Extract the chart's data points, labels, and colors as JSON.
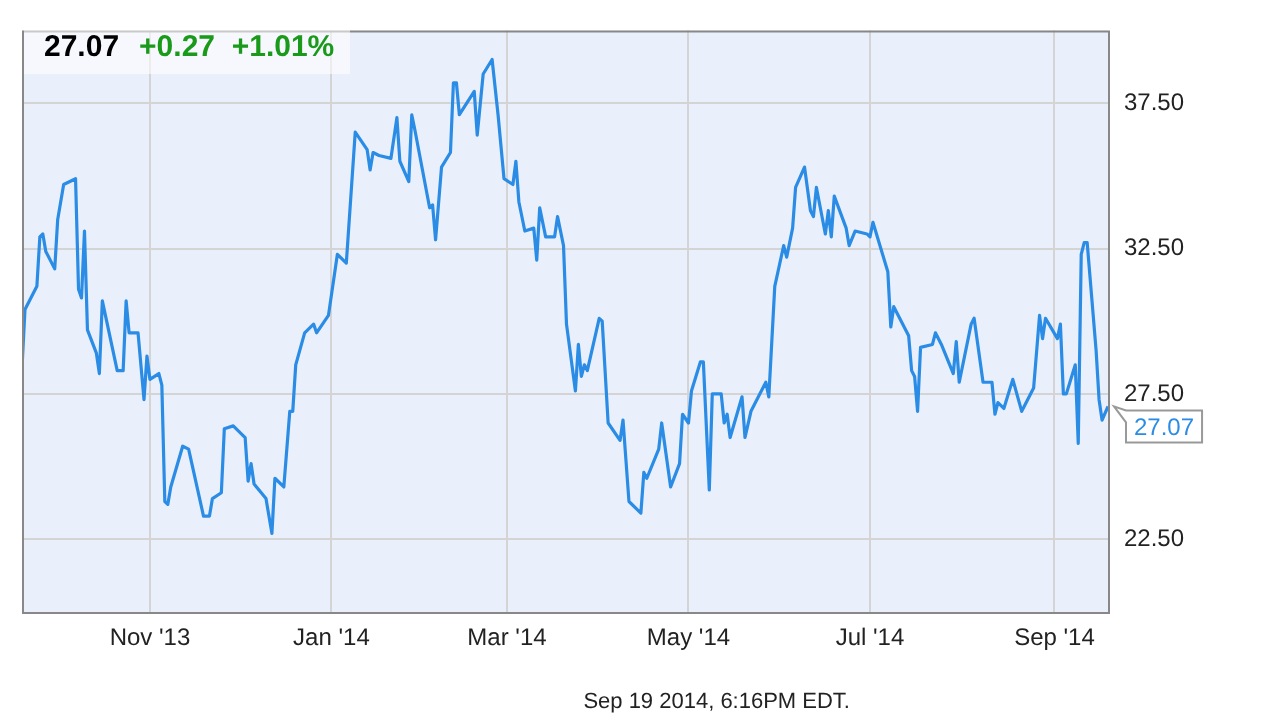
{
  "chart_data": {
    "type": "line",
    "title": "27.07",
    "subtitle": "+0.27  +1.01%",
    "color": "#2b8ce6",
    "marker": "none",
    "grid": true,
    "xlim": [
      "2013-09-19",
      "2014-09-19"
    ],
    "xticks": [
      {
        "value": "2013-11-01",
        "label": "Nov '13"
      },
      {
        "value": "2014-01-01",
        "label": "Jan '14"
      },
      {
        "value": "2014-03-01",
        "label": "Mar '14"
      },
      {
        "value": "2014-05-01",
        "label": "May '14"
      },
      {
        "value": "2014-07-01",
        "label": "Jul '14"
      },
      {
        "value": "2014-09-01",
        "label": "Sep '14"
      }
    ],
    "ylim": [
      20,
      40
    ],
    "yticks": [
      {
        "value": 22.5,
        "label": "22.50"
      },
      {
        "value": 27.5,
        "label": "27.50"
      },
      {
        "value": 32.5,
        "label": "32.50"
      },
      {
        "value": 37.5,
        "label": "37.50"
      }
    ],
    "x": [
      "2013-09-19",
      "2013-09-20",
      "2013-09-24",
      "2013-09-25",
      "2013-09-26",
      "2013-09-27",
      "2013-09-30",
      "2013-10-01",
      "2013-10-03",
      "2013-10-07",
      "2013-10-08",
      "2013-10-09",
      "2013-10-10",
      "2013-10-11",
      "2013-10-14",
      "2013-10-15",
      "2013-10-16",
      "2013-10-21",
      "2013-10-23",
      "2013-10-24",
      "2013-10-25",
      "2013-10-28",
      "2013-10-30",
      "2013-10-31",
      "2013-11-01",
      "2013-11-04",
      "2013-11-05",
      "2013-11-06",
      "2013-11-07",
      "2013-11-08",
      "2013-11-12",
      "2013-11-14",
      "2013-11-19",
      "2013-11-21",
      "2013-11-22",
      "2013-11-25",
      "2013-11-26",
      "2013-11-29",
      "2013-12-03",
      "2013-12-04",
      "2013-12-05",
      "2013-12-06",
      "2013-12-10",
      "2013-12-12",
      "2013-12-13",
      "2013-12-16",
      "2013-12-18",
      "2013-12-19",
      "2013-12-20",
      "2013-12-23",
      "2013-12-26",
      "2013-12-27",
      "2013-12-31",
      "2014-01-03",
      "2014-01-06",
      "2014-01-09",
      "2014-01-13",
      "2014-01-14",
      "2014-01-15",
      "2014-01-17",
      "2014-01-21",
      "2014-01-23",
      "2014-01-24",
      "2014-01-27",
      "2014-01-28",
      "2014-01-29",
      "2014-02-03",
      "2014-02-04",
      "2014-02-05",
      "2014-02-07",
      "2014-02-10",
      "2014-02-11",
      "2014-02-12",
      "2014-02-13",
      "2014-02-18",
      "2014-02-19",
      "2014-02-21",
      "2014-02-24",
      "2014-02-26",
      "2014-02-28",
      "2014-03-03",
      "2014-03-04",
      "2014-03-05",
      "2014-03-07",
      "2014-03-10",
      "2014-03-11",
      "2014-03-12",
      "2014-03-14",
      "2014-03-17",
      "2014-03-18",
      "2014-03-20",
      "2014-03-21",
      "2014-03-24",
      "2014-03-25",
      "2014-03-26",
      "2014-03-27",
      "2014-03-28",
      "2014-04-01",
      "2014-04-02",
      "2014-04-04",
      "2014-04-08",
      "2014-04-09",
      "2014-04-11",
      "2014-04-15",
      "2014-04-16",
      "2014-04-17",
      "2014-04-21",
      "2014-04-22",
      "2014-04-25",
      "2014-04-28",
      "2014-04-29",
      "2014-05-01",
      "2014-05-02",
      "2014-05-05",
      "2014-05-06",
      "2014-05-08",
      "2014-05-09",
      "2014-05-12",
      "2014-05-13",
      "2014-05-14",
      "2014-05-15",
      "2014-05-19",
      "2014-05-20",
      "2014-05-22",
      "2014-05-27",
      "2014-05-28",
      "2014-05-30",
      "2014-06-02",
      "2014-06-03",
      "2014-06-05",
      "2014-06-06",
      "2014-06-09",
      "2014-06-11",
      "2014-06-12",
      "2014-06-13",
      "2014-06-16",
      "2014-06-17",
      "2014-06-18",
      "2014-06-19",
      "2014-06-23",
      "2014-06-24",
      "2014-06-26",
      "2014-06-30",
      "2014-07-01",
      "2014-07-02",
      "2014-07-07",
      "2014-07-08",
      "2014-07-09",
      "2014-07-14",
      "2014-07-15",
      "2014-07-16",
      "2014-07-17",
      "2014-07-18",
      "2014-07-22",
      "2014-07-23",
      "2014-07-25",
      "2014-07-29",
      "2014-07-30",
      "2014-07-31",
      "2014-08-04",
      "2014-08-05",
      "2014-08-08",
      "2014-08-11",
      "2014-08-12",
      "2014-08-13",
      "2014-08-15",
      "2014-08-18",
      "2014-08-21",
      "2014-08-25",
      "2014-08-27",
      "2014-08-28",
      "2014-08-29",
      "2014-09-02",
      "2014-09-03",
      "2014-09-04",
      "2014-09-05",
      "2014-09-08",
      "2014-09-09",
      "2014-09-10",
      "2014-09-11",
      "2014-09-12",
      "2014-09-15",
      "2014-09-16",
      "2014-09-17",
      "2014-09-19"
    ],
    "values": [
      28.4,
      30.4,
      31.2,
      32.9,
      33.0,
      32.4,
      31.8,
      33.5,
      34.7,
      34.9,
      31.1,
      30.8,
      33.1,
      29.7,
      28.9,
      28.2,
      30.7,
      28.3,
      28.3,
      30.7,
      29.6,
      29.6,
      27.3,
      28.8,
      28.0,
      28.2,
      27.8,
      23.8,
      23.7,
      24.3,
      25.7,
      25.6,
      23.3,
      23.3,
      23.9,
      24.1,
      26.3,
      26.4,
      26.0,
      24.5,
      25.1,
      24.4,
      23.9,
      22.7,
      24.6,
      24.3,
      26.9,
      26.9,
      28.5,
      29.6,
      29.9,
      29.6,
      30.2,
      32.3,
      32.0,
      36.5,
      35.9,
      35.2,
      35.8,
      35.7,
      35.6,
      37.0,
      35.5,
      34.8,
      37.1,
      36.6,
      33.9,
      34.0,
      32.8,
      35.3,
      35.8,
      38.2,
      38.2,
      37.1,
      37.9,
      36.4,
      38.5,
      39.0,
      37.1,
      34.9,
      34.7,
      35.5,
      34.1,
      33.1,
      33.2,
      32.1,
      33.9,
      32.9,
      32.9,
      33.6,
      32.6,
      29.9,
      27.6,
      29.2,
      28.1,
      28.5,
      28.3,
      30.1,
      30.0,
      26.5,
      25.9,
      26.6,
      23.8,
      23.4,
      24.8,
      24.6,
      25.6,
      26.5,
      24.3,
      25.1,
      26.8,
      26.5,
      27.6,
      28.6,
      28.6,
      24.2,
      27.5,
      27.5,
      26.5,
      26.8,
      26.0,
      27.4,
      26.0,
      26.9,
      27.9,
      27.4,
      31.2,
      32.6,
      32.2,
      33.2,
      34.6,
      35.3,
      33.8,
      33.6,
      34.6,
      33.0,
      33.8,
      32.9,
      34.3,
      33.2,
      32.6,
      33.1,
      33.0,
      32.9,
      33.4,
      31.7,
      29.8,
      30.5,
      29.5,
      28.3,
      28.1,
      26.9,
      29.1,
      29.2,
      29.6,
      29.2,
      28.2,
      29.3,
      27.9,
      29.9,
      30.1,
      27.9,
      27.9,
      26.8,
      27.2,
      27.0,
      28.0,
      26.9,
      27.7,
      30.2,
      29.4,
      30.1,
      29.4,
      29.9,
      27.5,
      27.5,
      28.5,
      25.8,
      32.3,
      32.7,
      32.7,
      29.0,
      27.3,
      26.6,
      27.07
    ],
    "annotations": [
      {
        "text": "27.07",
        "x": "2014-09-19",
        "y": 27.07
      },
      "Sep 19 2014, 6:16PM EDT."
    ]
  }
}
